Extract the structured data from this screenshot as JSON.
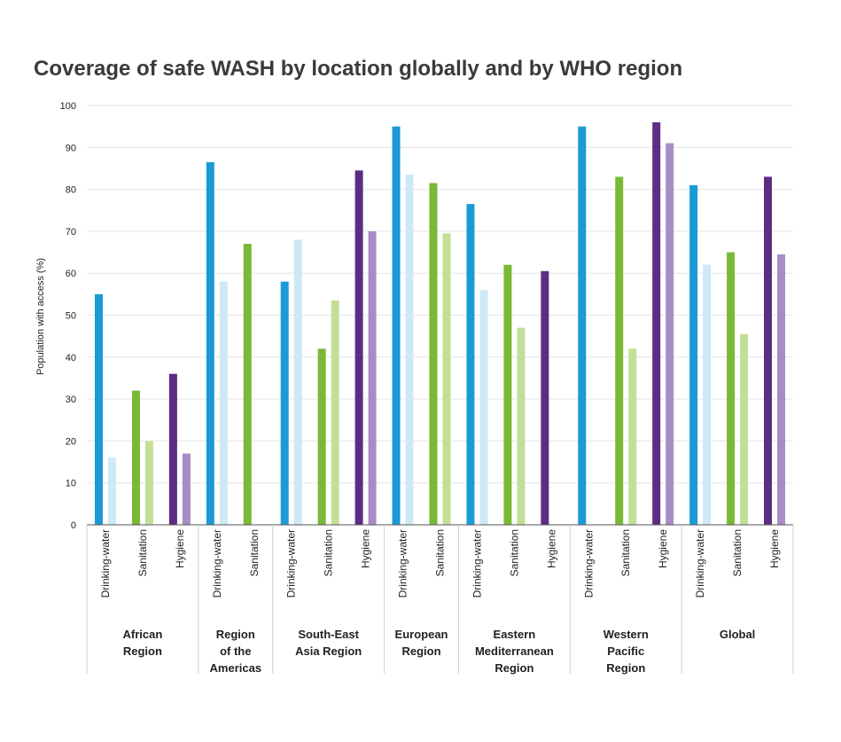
{
  "chart_data": {
    "type": "bar",
    "title": "Coverage of safe WASH by location globally and by WHO region",
    "ylabel": "Population with access (%)",
    "xlabel": "",
    "ylim": [
      0,
      100
    ],
    "yticks": [
      0,
      10,
      20,
      30,
      40,
      50,
      60,
      70,
      80,
      90,
      100
    ],
    "grid": true,
    "colors": {
      "Drinking-water": [
        "#1b9ad6",
        "#cde8f6"
      ],
      "Sanitation": [
        "#7ab837",
        "#c3df96"
      ],
      "Hygiene": [
        "#5c2d83",
        "#a98cc4"
      ]
    },
    "groups": [
      {
        "name": [
          "African",
          "Region"
        ],
        "categories": [
          {
            "label": "Drinking-water",
            "values": [
              55,
              16
            ]
          },
          {
            "label": "Sanitation",
            "values": [
              32,
              20
            ]
          },
          {
            "label": "Hygiene",
            "values": [
              36,
              17
            ]
          }
        ]
      },
      {
        "name": [
          "Region",
          "of the",
          "Americas"
        ],
        "categories": [
          {
            "label": "Drinking-water",
            "values": [
              86.5,
              58
            ]
          },
          {
            "label": "Sanitation",
            "values": [
              67,
              null
            ]
          }
        ]
      },
      {
        "name": [
          "South-East",
          "Asia Region"
        ],
        "categories": [
          {
            "label": "Drinking-water",
            "values": [
              58,
              68
            ]
          },
          {
            "label": "Sanitation",
            "values": [
              42,
              53.5
            ]
          },
          {
            "label": "Hygiene",
            "values": [
              84.5,
              70
            ]
          }
        ]
      },
      {
        "name": [
          "European",
          "Region"
        ],
        "categories": [
          {
            "label": "Drinking-water",
            "values": [
              95,
              83.5
            ]
          },
          {
            "label": "Sanitation",
            "values": [
              81.5,
              69.5
            ]
          }
        ]
      },
      {
        "name": [
          "Eastern",
          "Mediterranean",
          "Region"
        ],
        "categories": [
          {
            "label": "Drinking-water",
            "values": [
              76.5,
              56
            ]
          },
          {
            "label": "Sanitation",
            "values": [
              62,
              47
            ]
          },
          {
            "label": "Hygiene",
            "values": [
              60.5,
              null
            ]
          }
        ]
      },
      {
        "name": [
          "Western",
          "Pacific",
          "Region"
        ],
        "categories": [
          {
            "label": "Drinking-water",
            "values": [
              95,
              null
            ]
          },
          {
            "label": "Sanitation",
            "values": [
              83,
              42
            ]
          },
          {
            "label": "Hygiene",
            "values": [
              96,
              91
            ]
          }
        ]
      },
      {
        "name": [
          "Global"
        ],
        "categories": [
          {
            "label": "Drinking-water",
            "values": [
              81,
              62
            ]
          },
          {
            "label": "Sanitation",
            "values": [
              65,
              45.5
            ]
          },
          {
            "label": "Hygiene",
            "values": [
              83,
              64.5
            ]
          }
        ]
      }
    ]
  }
}
